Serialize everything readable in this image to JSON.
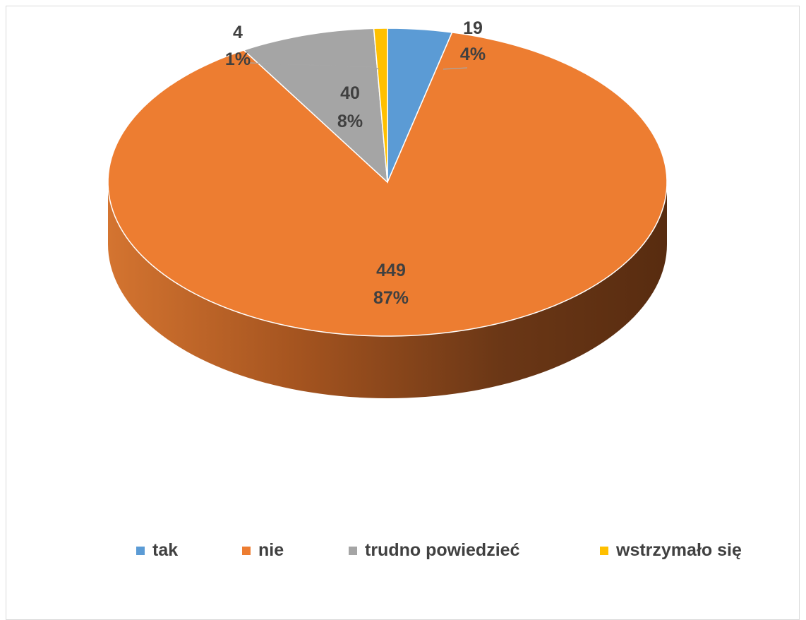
{
  "chart_data": {
    "type": "pie",
    "title": "",
    "style": "3d",
    "legend_position": "bottom",
    "slices": [
      {
        "label": "tak",
        "value": 19,
        "percent_label": "4%",
        "color": "#5b9bd5"
      },
      {
        "label": "nie",
        "value": 449,
        "percent_label": "87%",
        "color": "#ed7d31"
      },
      {
        "label": "trudno powiedzieć",
        "value": 40,
        "percent_label": "8%",
        "color": "#a5a5a5"
      },
      {
        "label": "wstrzymało się",
        "value": 4,
        "percent_label": "1%",
        "color": "#ffc000"
      }
    ]
  }
}
